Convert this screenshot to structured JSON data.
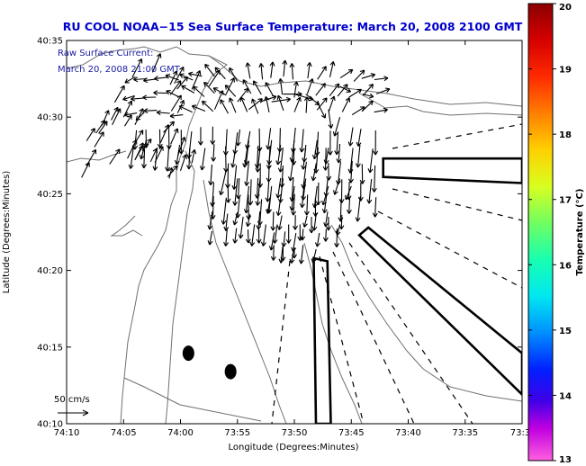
{
  "chart_data": {
    "type": "vector-map",
    "title": "RU COOL  NOAA−15  Sea Surface Temperature:  March 20, 2008 2100 GMT",
    "annotation_lines": [
      "Raw Surface Current:",
      "March 20, 2008 21:00 GMT"
    ],
    "xlabel": "Longitude (Degrees:Minutes)",
    "ylabel": "Latitude (Degrees:Minutes)",
    "x_ticks": [
      "74:10",
      "74:05",
      "74:00",
      "73:55",
      "73:50",
      "73:45",
      "73:40",
      "73:35",
      "73:3"
    ],
    "y_ticks": [
      "40:35",
      "40:30",
      "40:25",
      "40:20",
      "40:15",
      "40:10"
    ],
    "xlim_minutes_west": [
      70,
      30
    ],
    "ylim_minutes_north": [
      10,
      35
    ],
    "scale_label": "50 cm/s",
    "colorbar": {
      "label": "Temperature (°C)",
      "ticks": [
        "20",
        "19",
        "18",
        "17",
        "16",
        "15",
        "14",
        "13"
      ],
      "range": [
        13,
        20
      ]
    },
    "grid": false,
    "current_vectors_dominant_direction": "SSW",
    "current_vectors": [
      {
        "lon": 63.0,
        "lat": 28.5,
        "u": -2,
        "v": -7
      },
      {
        "lon": 61.5,
        "lat": 29.0,
        "u": 4,
        "v": 4
      },
      {
        "lon": 59.0,
        "lat": 31.8,
        "u": 3,
        "v": 7
      },
      {
        "lon": 57.5,
        "lat": 32.0,
        "u": 4,
        "v": 6
      },
      {
        "lon": 57.0,
        "lat": 30.5,
        "u": 3,
        "v": 7
      },
      {
        "lon": 56.0,
        "lat": 31.5,
        "u": 3,
        "v": 6
      },
      {
        "lon": 55.0,
        "lat": 31.0,
        "u": 4,
        "v": 5
      },
      {
        "lon": 54.0,
        "lat": 30.5,
        "u": 5,
        "v": 4
      },
      {
        "lon": 53.0,
        "lat": 31.0,
        "u": 6,
        "v": 2
      },
      {
        "lon": 52.0,
        "lat": 31.0,
        "u": 7,
        "v": 1
      },
      {
        "lon": 51.0,
        "lat": 31.5,
        "u": 7,
        "v": 0
      },
      {
        "lon": 50.0,
        "lat": 31.5,
        "u": 7,
        "v": -2
      },
      {
        "lon": 49.0,
        "lat": 31.5,
        "u": 5,
        "v": -4
      },
      {
        "lon": 48.0,
        "lat": 31.0,
        "u": 3,
        "v": -6
      },
      {
        "lon": 47.0,
        "lat": 30.5,
        "u": 1,
        "v": -7
      },
      {
        "lon": 46.0,
        "lat": 30.0,
        "u": -2,
        "v": -7
      },
      {
        "lon": 46.0,
        "lat": 32.0,
        "u": 4,
        "v": -2
      },
      {
        "lon": 44.0,
        "lat": 31.5,
        "u": 4,
        "v": -1
      },
      {
        "lon": 55.0,
        "lat": 29.0,
        "u": -1,
        "v": -8
      },
      {
        "lon": 54.0,
        "lat": 28.5,
        "u": -1,
        "v": -9
      },
      {
        "lon": 53.0,
        "lat": 28.0,
        "u": -1,
        "v": -9
      },
      {
        "lon": 52.0,
        "lat": 28.5,
        "u": -1,
        "v": -9
      },
      {
        "lon": 51.0,
        "lat": 28.0,
        "u": -1,
        "v": -9
      },
      {
        "lon": 50.0,
        "lat": 28.5,
        "u": -1,
        "v": -8
      },
      {
        "lon": 49.0,
        "lat": 28.0,
        "u": -1,
        "v": -8
      },
      {
        "lon": 48.0,
        "lat": 28.5,
        "u": -1,
        "v": -7
      },
      {
        "lon": 47.0,
        "lat": 28.0,
        "u": -1,
        "v": -6
      },
      {
        "lon": 56.0,
        "lat": 26.5,
        "u": -2,
        "v": -9
      },
      {
        "lon": 55.0,
        "lat": 26.0,
        "u": -1,
        "v": -10
      },
      {
        "lon": 54.0,
        "lat": 25.5,
        "u": -1,
        "v": -10
      },
      {
        "lon": 53.0,
        "lat": 26.0,
        "u": -1,
        "v": -10
      },
      {
        "lon": 52.0,
        "lat": 25.5,
        "u": -1,
        "v": -10
      },
      {
        "lon": 51.0,
        "lat": 26.0,
        "u": -1,
        "v": -9
      },
      {
        "lon": 50.0,
        "lat": 25.5,
        "u": -1,
        "v": -9
      },
      {
        "lon": 49.0,
        "lat": 26.0,
        "u": -1,
        "v": -8
      },
      {
        "lon": 48.0,
        "lat": 25.5,
        "u": -1,
        "v": -8
      },
      {
        "lon": 47.0,
        "lat": 25.5,
        "u": -2,
        "v": -7
      },
      {
        "lon": 46.0,
        "lat": 26.0,
        "u": -2,
        "v": -6
      },
      {
        "lon": 45.0,
        "lat": 25.5,
        "u": -2,
        "v": -5
      },
      {
        "lon": 54.5,
        "lat": 23.5,
        "u": -1,
        "v": -8
      },
      {
        "lon": 53.5,
        "lat": 23.0,
        "u": -1,
        "v": -8
      },
      {
        "lon": 52.5,
        "lat": 23.0,
        "u": -1,
        "v": -8
      },
      {
        "lon": 51.5,
        "lat": 23.0,
        "u": -1,
        "v": -7
      },
      {
        "lon": 50.5,
        "lat": 23.0,
        "u": 0,
        "v": -7
      },
      {
        "lon": 49.5,
        "lat": 23.0,
        "u": 0,
        "v": -6
      },
      {
        "lon": 48.5,
        "lat": 23.5,
        "u": 0,
        "v": -6
      },
      {
        "lon": 47.0,
        "lat": 23.5,
        "u": 0,
        "v": -5
      },
      {
        "lon": 46.0,
        "lat": 23.0,
        "u": -1,
        "v": -4
      },
      {
        "lon": 51.0,
        "lat": 21.5,
        "u": 0,
        "v": -5
      },
      {
        "lon": 50.0,
        "lat": 21.5,
        "u": 0,
        "v": -4
      },
      {
        "lon": 64.0,
        "lat": 29.5,
        "u": 3,
        "v": 6
      },
      {
        "lon": 65.0,
        "lat": 30.0,
        "u": 3,
        "v": 6
      },
      {
        "lon": 66.0,
        "lat": 29.5,
        "u": 3,
        "v": 6
      },
      {
        "lon": 60.0,
        "lat": 26.5,
        "u": 2,
        "v": 6
      },
      {
        "lon": 59.0,
        "lat": 27.0,
        "u": 1,
        "v": 5
      },
      {
        "lon": 61.0,
        "lat": 26.0,
        "u": 1,
        "v": 4
      }
    ],
    "transects": [
      {
        "type": "box",
        "corners": [
          [
            42.2,
            27.3
          ],
          [
            30,
            27.3
          ],
          [
            30,
            25.7
          ],
          [
            42.2,
            26.1
          ]
        ]
      },
      {
        "type": "box",
        "corners": [
          [
            43.5,
            22.8
          ],
          [
            30,
            14.6
          ],
          [
            30,
            11.9
          ],
          [
            44.3,
            22.3
          ]
        ]
      },
      {
        "type": "box",
        "corners": [
          [
            48.1,
            10.0
          ],
          [
            48.3,
            20.8
          ],
          [
            47.1,
            20.6
          ],
          [
            46.8,
            10.0
          ]
        ]
      }
    ],
    "points": [
      {
        "lon": 59.3,
        "lat": 14.6
      },
      {
        "lon": 55.6,
        "lat": 13.4
      }
    ]
  }
}
